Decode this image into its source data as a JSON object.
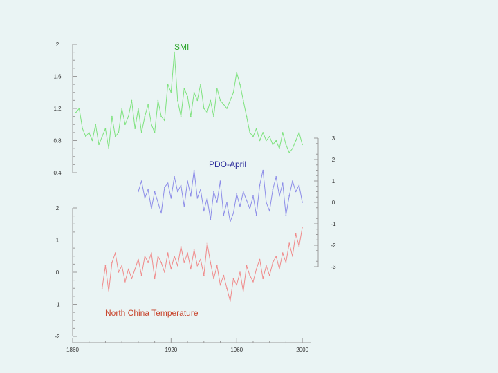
{
  "chart_data": {
    "type": "line",
    "x_axis": {
      "range": [
        1860,
        2005
      ],
      "ticks": [
        "1860",
        "1920",
        "1960",
        "2000"
      ],
      "tick_values": [
        1860,
        1920,
        1960,
        2000
      ]
    },
    "axes": {
      "smi": {
        "side": "left",
        "range": [
          0.4,
          2.0
        ],
        "ticks": [
          "2",
          "1.6",
          "1.2",
          "0.8",
          "0.4"
        ],
        "tick_values": [
          2.0,
          1.6,
          1.2,
          0.8,
          0.4
        ]
      },
      "pdo": {
        "side": "right",
        "range": [
          -3,
          3
        ],
        "ticks": [
          "3",
          "2",
          "1",
          "0",
          "-1",
          "-2",
          "-3"
        ],
        "tick_values": [
          3,
          2,
          1,
          0,
          -1,
          -2,
          -3
        ]
      },
      "temp": {
        "side": "left",
        "range": [
          -2,
          2
        ],
        "ticks": [
          "2",
          "1",
          "0",
          "-1",
          "-2"
        ],
        "tick_values": [
          2,
          1,
          0,
          -1,
          -2
        ]
      }
    },
    "series": [
      {
        "name": "SMI",
        "axis": "smi",
        "color": "#7ee27e",
        "x": [
          1862,
          1864,
          1866,
          1868,
          1870,
          1872,
          1874,
          1876,
          1878,
          1880,
          1882,
          1884,
          1886,
          1888,
          1890,
          1892,
          1894,
          1896,
          1898,
          1900,
          1902,
          1904,
          1906,
          1908,
          1910,
          1912,
          1914,
          1916,
          1918,
          1920,
          1922,
          1924,
          1926,
          1928,
          1930,
          1932,
          1934,
          1936,
          1938,
          1940,
          1942,
          1944,
          1946,
          1948,
          1950,
          1952,
          1954,
          1956,
          1958,
          1960,
          1962,
          1964,
          1966,
          1968,
          1970,
          1972,
          1974,
          1976,
          1978,
          1980,
          1982,
          1984,
          1986,
          1988,
          1990,
          1992,
          1994,
          1996,
          1998,
          2000
        ],
        "y": [
          1.15,
          1.2,
          0.95,
          0.85,
          0.9,
          0.8,
          1.0,
          0.75,
          0.85,
          0.95,
          0.7,
          1.1,
          0.85,
          0.9,
          1.2,
          1.0,
          1.1,
          1.3,
          0.95,
          1.2,
          0.9,
          1.1,
          1.25,
          1.0,
          0.9,
          1.3,
          1.1,
          1.05,
          1.5,
          1.4,
          1.9,
          1.3,
          1.1,
          1.45,
          1.35,
          1.1,
          1.4,
          1.3,
          1.5,
          1.2,
          1.15,
          1.3,
          1.1,
          1.45,
          1.3,
          1.25,
          1.2,
          1.3,
          1.4,
          1.65,
          1.5,
          1.3,
          1.1,
          0.9,
          0.85,
          0.95,
          0.8,
          0.9,
          0.8,
          0.85,
          0.75,
          0.8,
          0.7,
          0.9,
          0.75,
          0.65,
          0.7,
          0.8,
          0.9,
          0.75
        ]
      },
      {
        "name": "PDO-April",
        "axis": "pdo",
        "color": "#8c8ce8",
        "x": [
          1900,
          1902,
          1904,
          1906,
          1908,
          1910,
          1912,
          1914,
          1916,
          1918,
          1920,
          1922,
          1924,
          1926,
          1928,
          1930,
          1932,
          1934,
          1936,
          1938,
          1940,
          1942,
          1944,
          1946,
          1948,
          1950,
          1952,
          1954,
          1956,
          1958,
          1960,
          1962,
          1964,
          1966,
          1968,
          1970,
          1972,
          1974,
          1976,
          1978,
          1980,
          1982,
          1984,
          1986,
          1988,
          1990,
          1992,
          1994,
          1996,
          1998,
          2000
        ],
        "y": [
          0.5,
          1.0,
          0.2,
          0.6,
          -0.3,
          0.5,
          0.0,
          -0.5,
          0.7,
          0.9,
          0.2,
          1.2,
          0.5,
          0.8,
          -0.2,
          1.0,
          0.3,
          1.5,
          0.2,
          0.6,
          -0.4,
          0.2,
          -0.8,
          0.5,
          0.0,
          1.0,
          -0.6,
          0.0,
          -0.9,
          -0.5,
          0.4,
          -0.2,
          0.5,
          0.1,
          -0.3,
          0.3,
          -0.6,
          0.8,
          1.5,
          0.0,
          -0.4,
          0.6,
          1.2,
          0.3,
          0.9,
          -0.6,
          0.3,
          1.0,
          0.5,
          0.8,
          0.0
        ]
      },
      {
        "name": "North China Temperature",
        "axis": "temp",
        "color": "#f08a8a",
        "x": [
          1878,
          1880,
          1882,
          1884,
          1886,
          1888,
          1890,
          1892,
          1894,
          1896,
          1898,
          1900,
          1902,
          1904,
          1906,
          1908,
          1910,
          1912,
          1914,
          1916,
          1918,
          1920,
          1922,
          1924,
          1926,
          1928,
          1930,
          1932,
          1934,
          1936,
          1938,
          1940,
          1942,
          1944,
          1946,
          1948,
          1950,
          1952,
          1954,
          1956,
          1958,
          1960,
          1962,
          1964,
          1966,
          1968,
          1970,
          1972,
          1974,
          1976,
          1978,
          1980,
          1982,
          1984,
          1986,
          1988,
          1990,
          1992,
          1994,
          1996,
          1998,
          2000
        ],
        "y": [
          -0.5,
          0.2,
          -0.6,
          0.3,
          0.6,
          0.0,
          0.2,
          -0.3,
          0.1,
          -0.2,
          0.1,
          0.4,
          -0.1,
          0.5,
          0.3,
          0.6,
          -0.2,
          0.5,
          0.3,
          0.0,
          0.6,
          0.1,
          0.5,
          0.2,
          0.8,
          0.3,
          0.6,
          0.1,
          0.7,
          0.2,
          0.4,
          -0.1,
          0.9,
          0.3,
          -0.2,
          0.2,
          -0.4,
          -0.1,
          -0.5,
          -0.9,
          -0.2,
          -0.4,
          0.0,
          -0.6,
          0.2,
          -0.1,
          -0.3,
          0.1,
          0.4,
          -0.2,
          0.2,
          -0.1,
          0.3,
          0.5,
          0.1,
          0.6,
          0.3,
          0.9,
          0.5,
          1.2,
          0.8,
          1.4
        ]
      }
    ]
  }
}
